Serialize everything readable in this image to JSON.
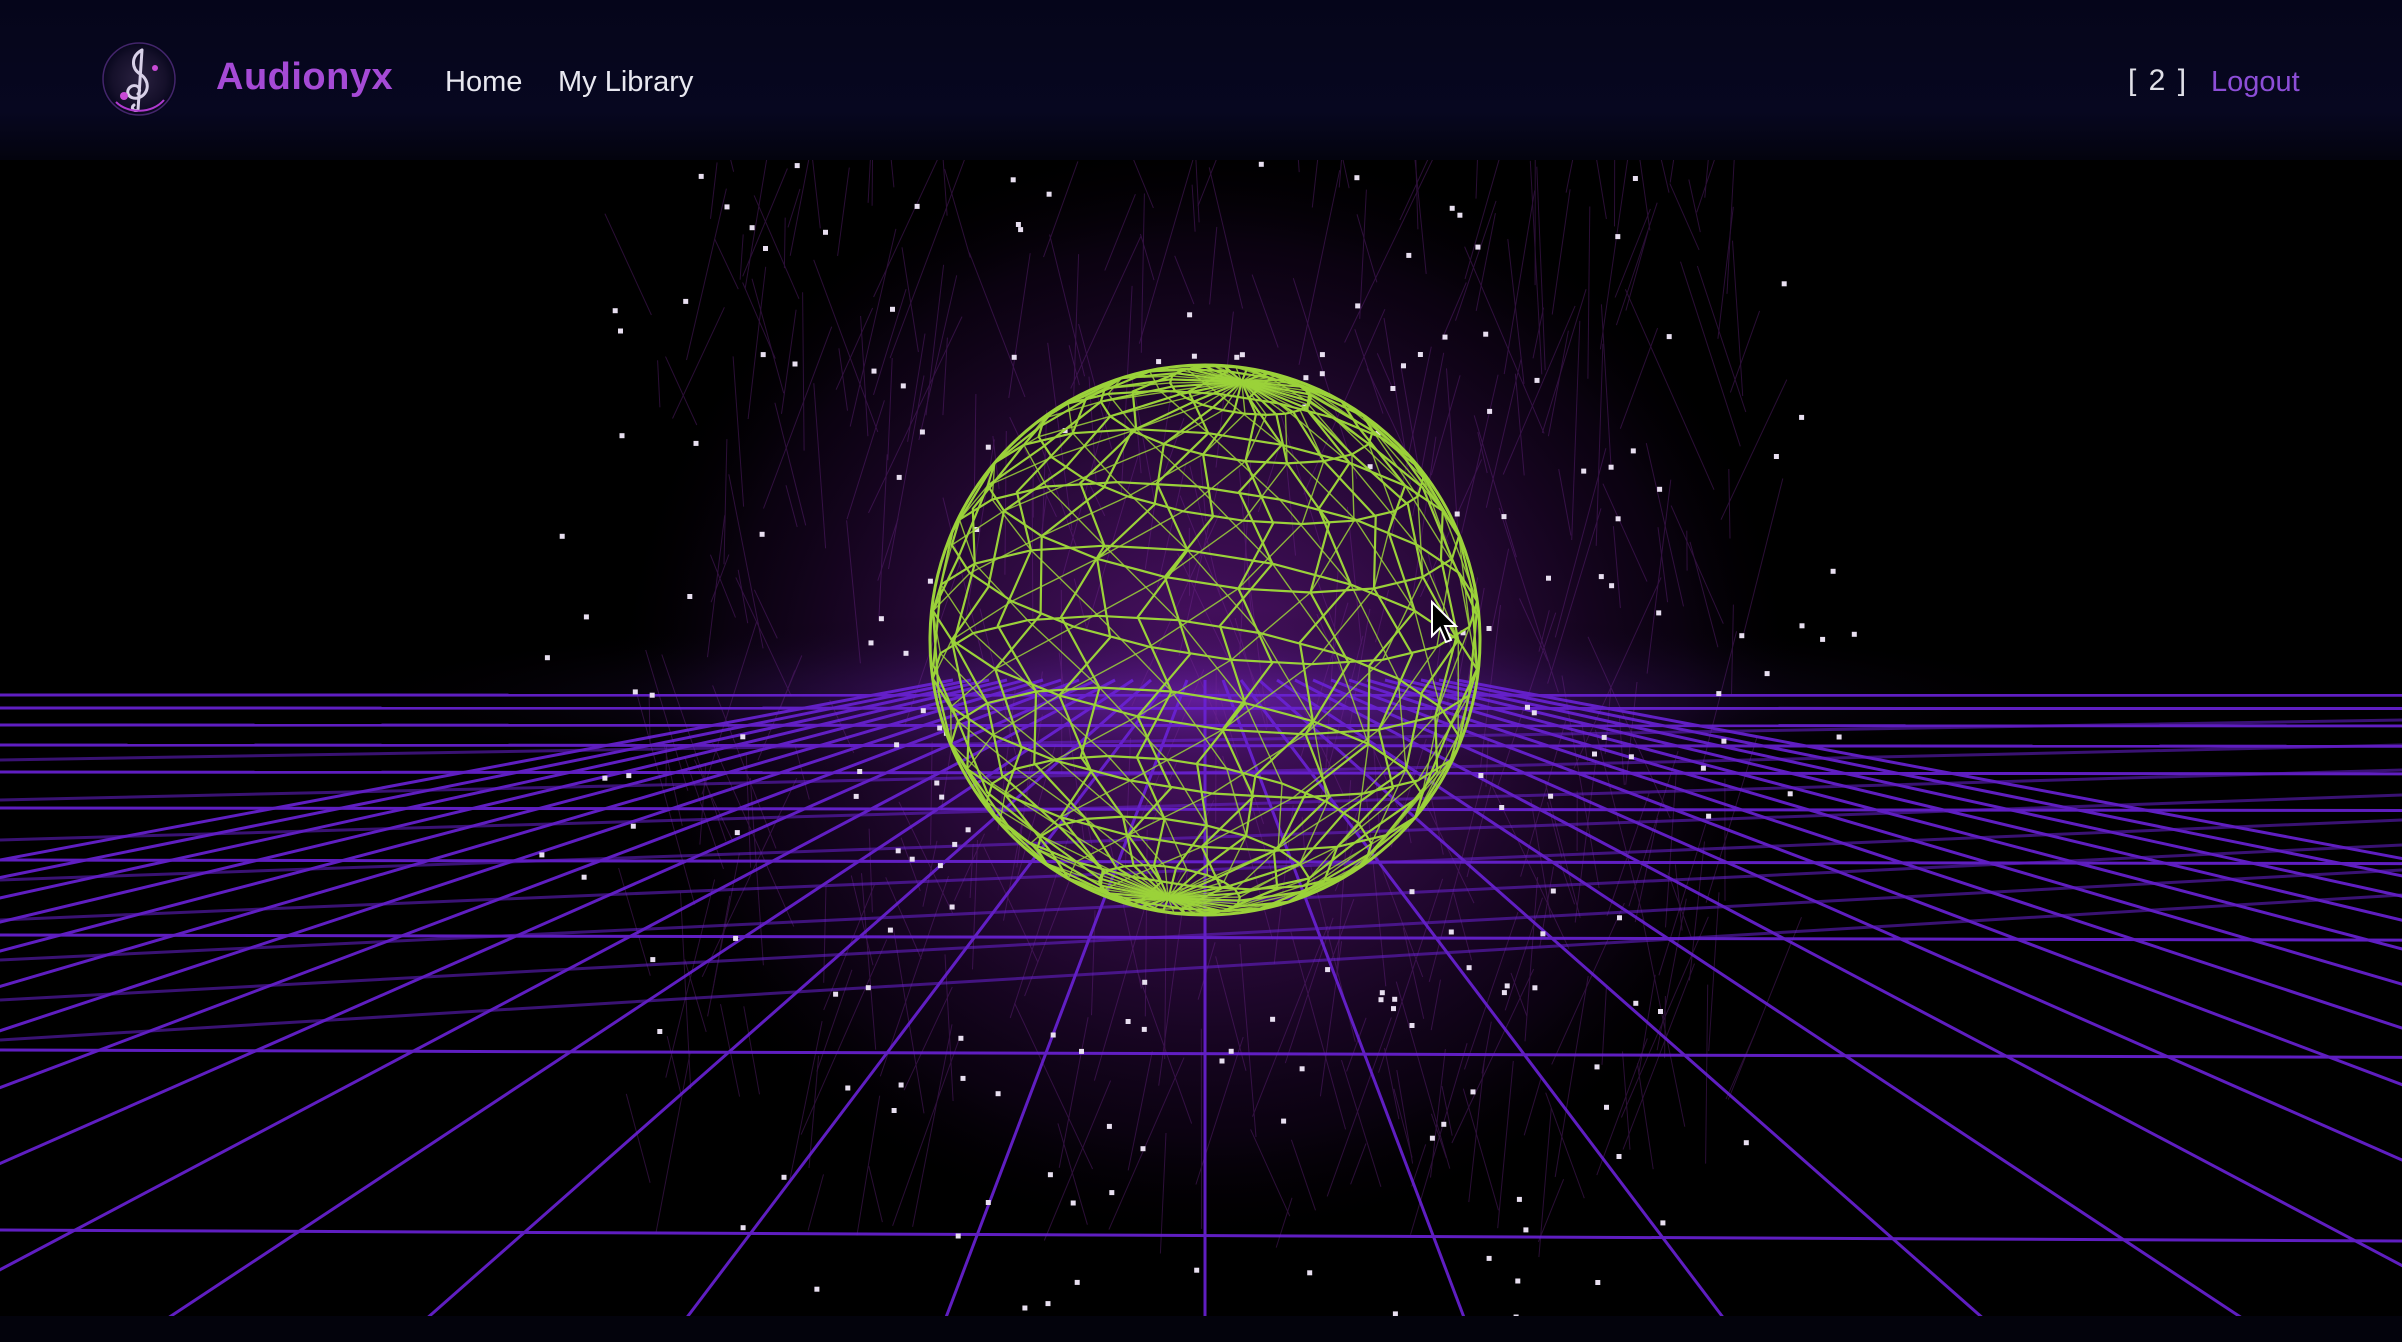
{
  "app": {
    "brand": "Audionyx"
  },
  "nav": {
    "home_label": "Home",
    "library_label": "My Library",
    "counter_text": "[ 2 ]",
    "logout_label": "Logout"
  },
  "icons": {
    "logo": "treble-clef-logo-icon",
    "cursor": "mouse-pointer-icon"
  },
  "colors": {
    "brand": "#a54ad6",
    "logout": "#8d4ed8",
    "grid": "#6a1fd0",
    "sphere": "#9bd23a",
    "particles": "#e8dff0",
    "cloud": "#5a1470",
    "navbar_bg": "#070720"
  }
}
